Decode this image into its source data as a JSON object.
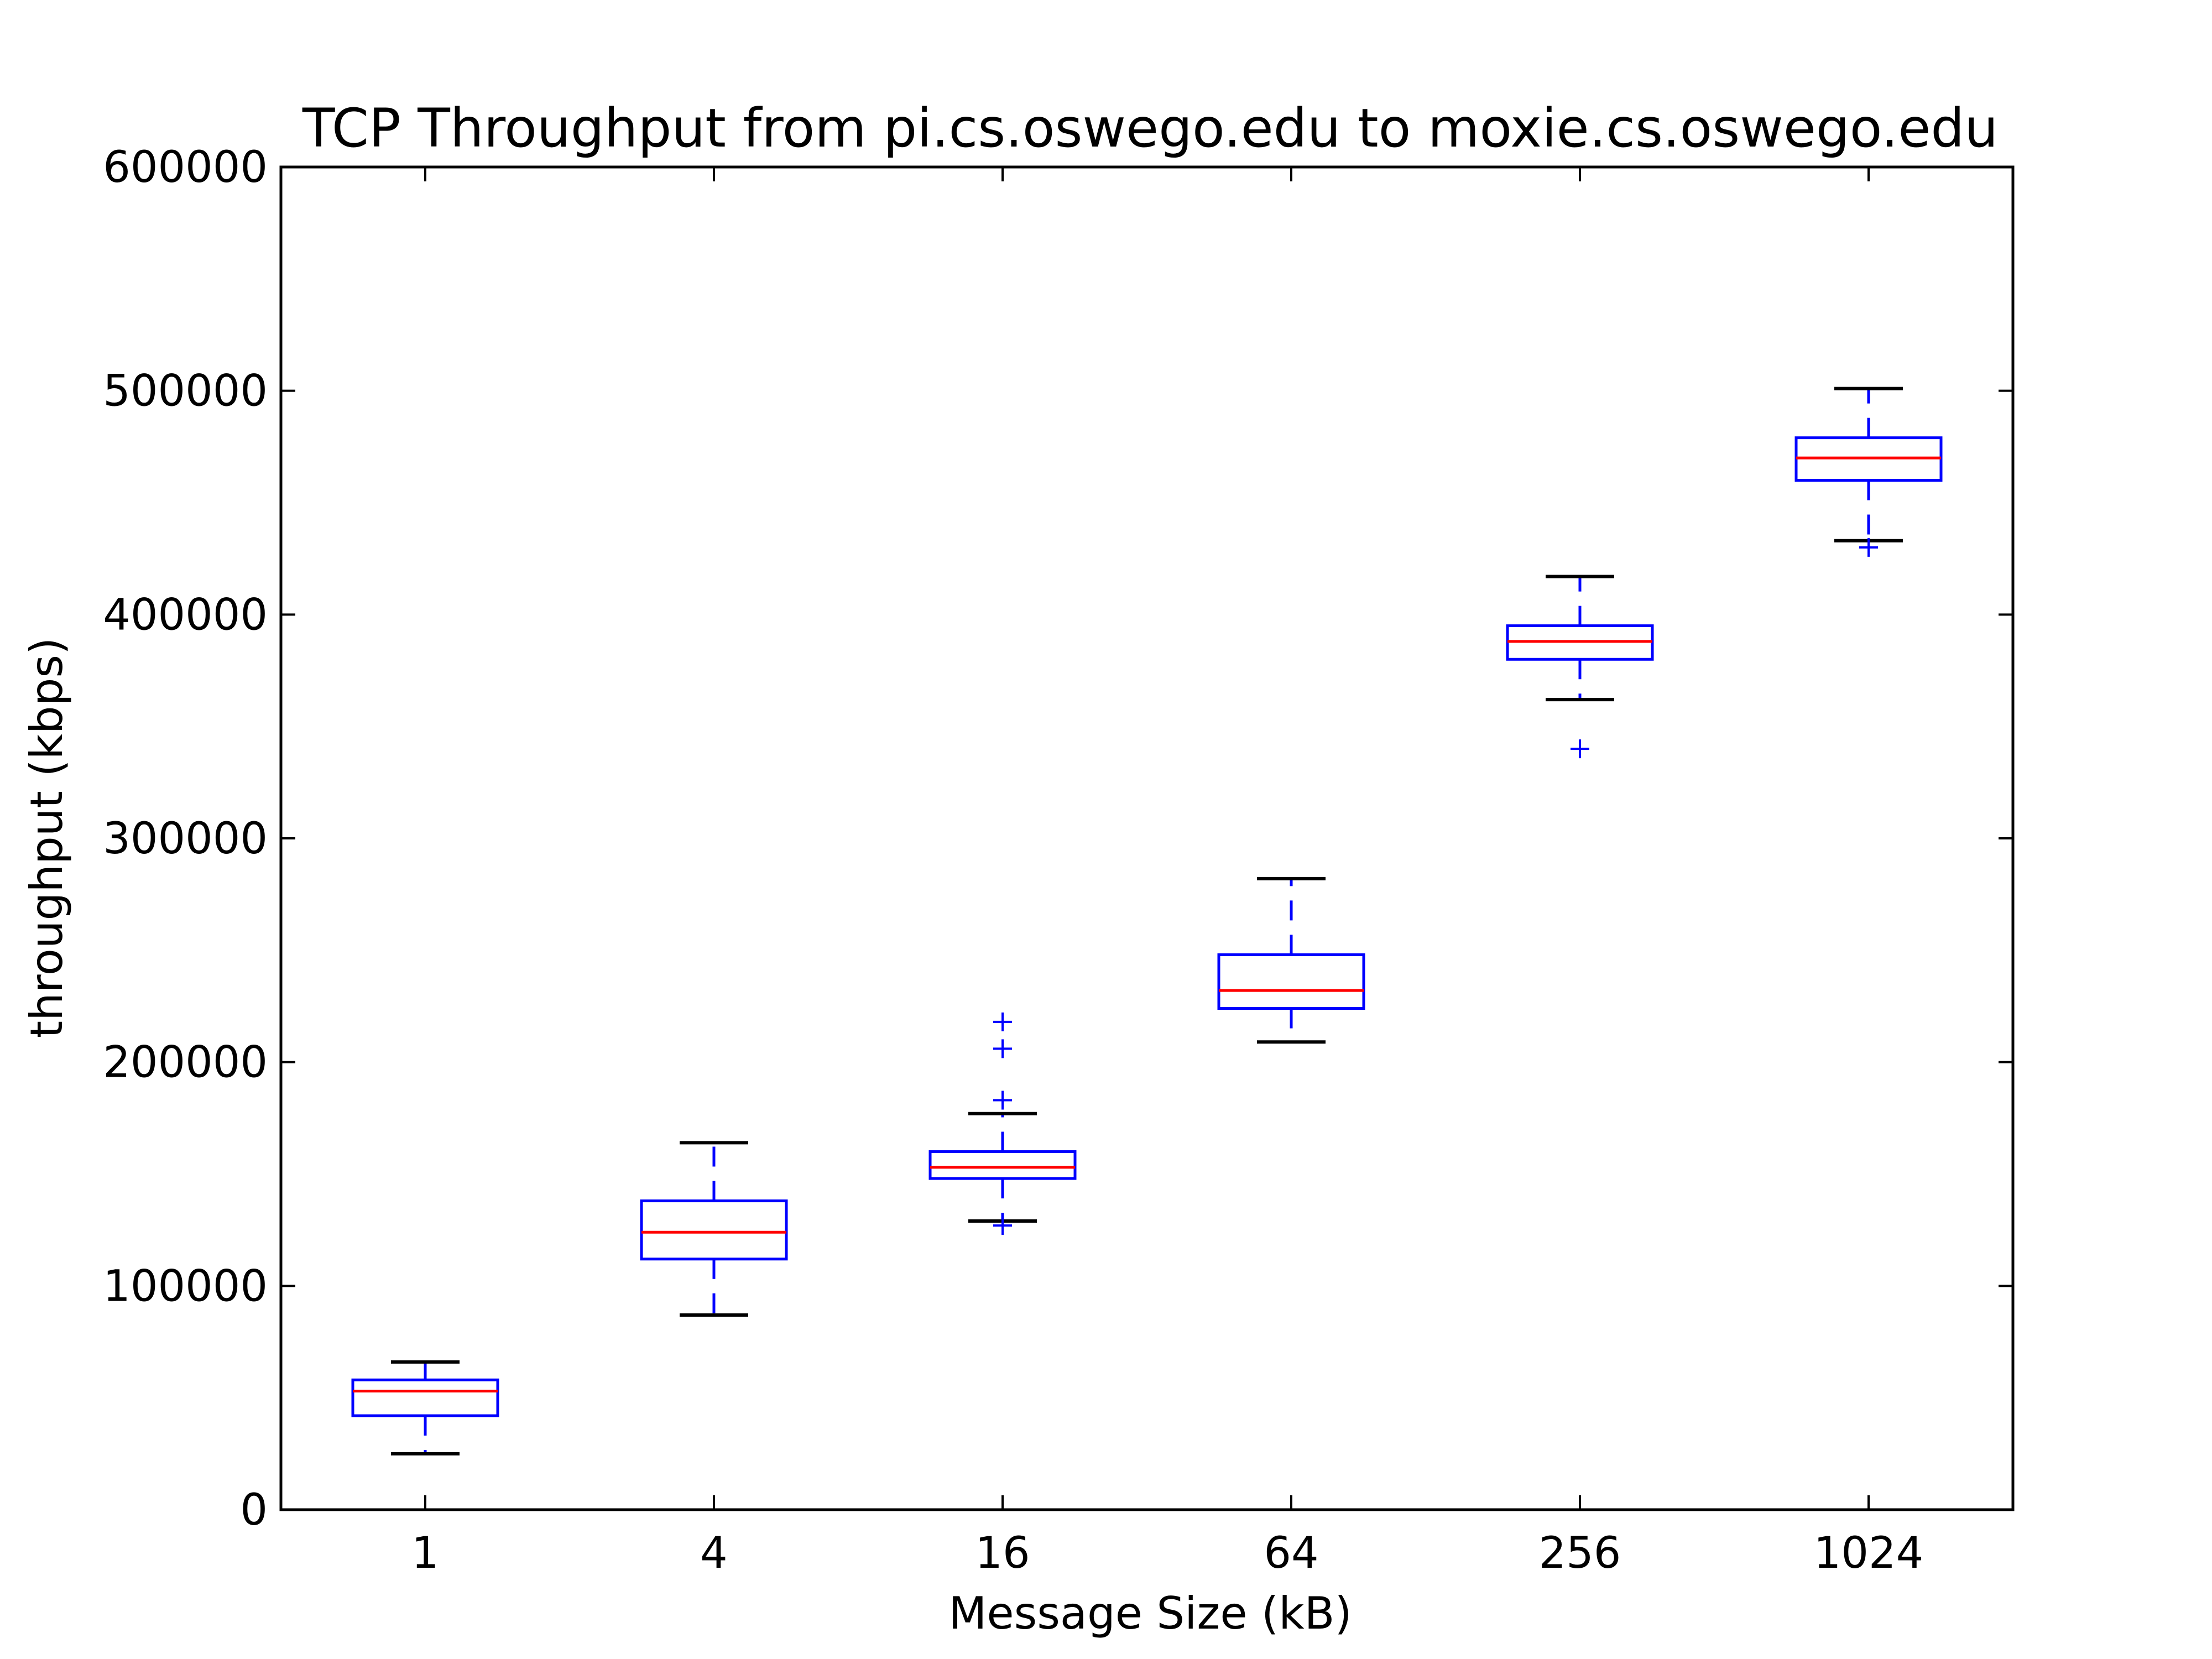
{
  "chart_data": {
    "type": "box",
    "title": "TCP Throughput from pi.cs.oswego.edu to moxie.cs.oswego.edu",
    "xlabel": "Message Size (kB)",
    "ylabel": "throughput (kbps)",
    "ylim": [
      0,
      600000
    ],
    "yticks": [
      "0",
      "100000",
      "200000",
      "300000",
      "400000",
      "500000",
      "600000"
    ],
    "categories": [
      "1",
      "4",
      "16",
      "64",
      "256",
      "1024"
    ],
    "boxes": [
      {
        "whisker_low": 25000,
        "q1": 42000,
        "median": 53000,
        "q3": 58000,
        "whisker_high": 66000,
        "outliers": []
      },
      {
        "whisker_low": 87000,
        "q1": 112000,
        "median": 124000,
        "q3": 138000,
        "whisker_high": 164000,
        "outliers": []
      },
      {
        "whisker_low": 129000,
        "q1": 148000,
        "median": 153000,
        "q3": 160000,
        "whisker_high": 177000,
        "outliers": [
          127000,
          183000,
          206000,
          218000
        ]
      },
      {
        "whisker_low": 209000,
        "q1": 224000,
        "median": 232000,
        "q3": 248000,
        "whisker_high": 282000,
        "outliers": []
      },
      {
        "whisker_low": 362000,
        "q1": 380000,
        "median": 388000,
        "q3": 395000,
        "whisker_high": 417000,
        "outliers": [
          340000
        ]
      },
      {
        "whisker_low": 433000,
        "q1": 460000,
        "median": 470000,
        "q3": 479000,
        "whisker_high": 501000,
        "outliers": [
          430000
        ]
      }
    ],
    "grid": false,
    "colors": {
      "box": "#0000ff",
      "median": "#ff0000",
      "whisker_cap": "#000000",
      "outlier": "#0000ff"
    }
  }
}
